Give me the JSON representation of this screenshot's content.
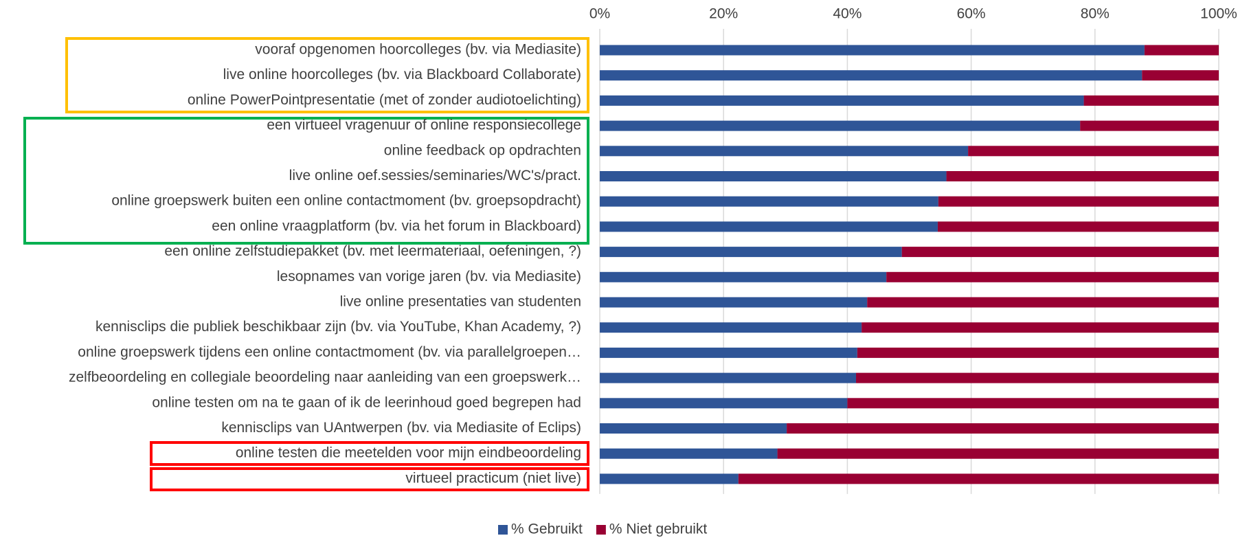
{
  "chart_data": {
    "type": "stacked_barh",
    "categories": [
      "vooraf opgenomen hoorcolleges (bv. via Mediasite)",
      "live online hoorcolleges (bv. via Blackboard Collaborate)",
      "online PowerPointpresentatie (met of zonder audiotoelichting)",
      "een virtueel vragenuur of online responsiecollege",
      "online feedback op opdrachten",
      "live online oef.sessies/seminaries/WC's/pract.",
      "online groepswerk buiten een online contactmoment (bv. groepsopdracht)",
      "een online vraagplatform (bv. via het forum in Blackboard)",
      "een online zelfstudiepakket (bv. met leermateriaal, oefeningen, ?)",
      "lesopnames van vorige jaren (bv. via Mediasite)",
      "live online presentaties van studenten",
      "kennisclips die publiek beschikbaar zijn (bv. via YouTube, Khan Academy, ?)",
      "online groepswerk tijdens een online contactmoment (bv. via parallelgroepen…",
      "zelfbeoordeling en collegiale beoordeling naar aanleiding van een groepswerk…",
      "online testen om na te gaan of ik de leerinhoud goed begrepen had",
      "kennisclips van UAntwerpen (bv. via Mediasite of Eclips)",
      "online testen die meetelden voor mijn eindbeoordeling",
      "virtueel practicum (niet live)"
    ],
    "series": [
      {
        "name": "% Gebruikt",
        "color": "#2f5597",
        "values": [
          88,
          87.6,
          78.2,
          77.6,
          59.5,
          56,
          54.7,
          54.6,
          48.8,
          46.3,
          43.2,
          42.3,
          41.6,
          41.4,
          40,
          30.2,
          28.7,
          22.4
        ]
      },
      {
        "name": "% Niet gebruikt",
        "color": "#990033",
        "values": [
          12,
          12.4,
          21.8,
          22.4,
          40.5,
          44,
          45.3,
          45.4,
          51.2,
          53.7,
          56.8,
          57.7,
          58.4,
          58.6,
          60,
          69.8,
          71.3,
          77.6
        ]
      }
    ],
    "xlim": [
      0,
      100
    ],
    "xticks": [
      {
        "value": 0,
        "label": "0%"
      },
      {
        "value": 20,
        "label": "20%"
      },
      {
        "value": 40,
        "label": "40%"
      },
      {
        "value": 60,
        "label": "60%"
      },
      {
        "value": 80,
        "label": "80%"
      },
      {
        "value": 100,
        "label": "100%"
      }
    ],
    "grid": true,
    "legend": "bottom"
  }
}
